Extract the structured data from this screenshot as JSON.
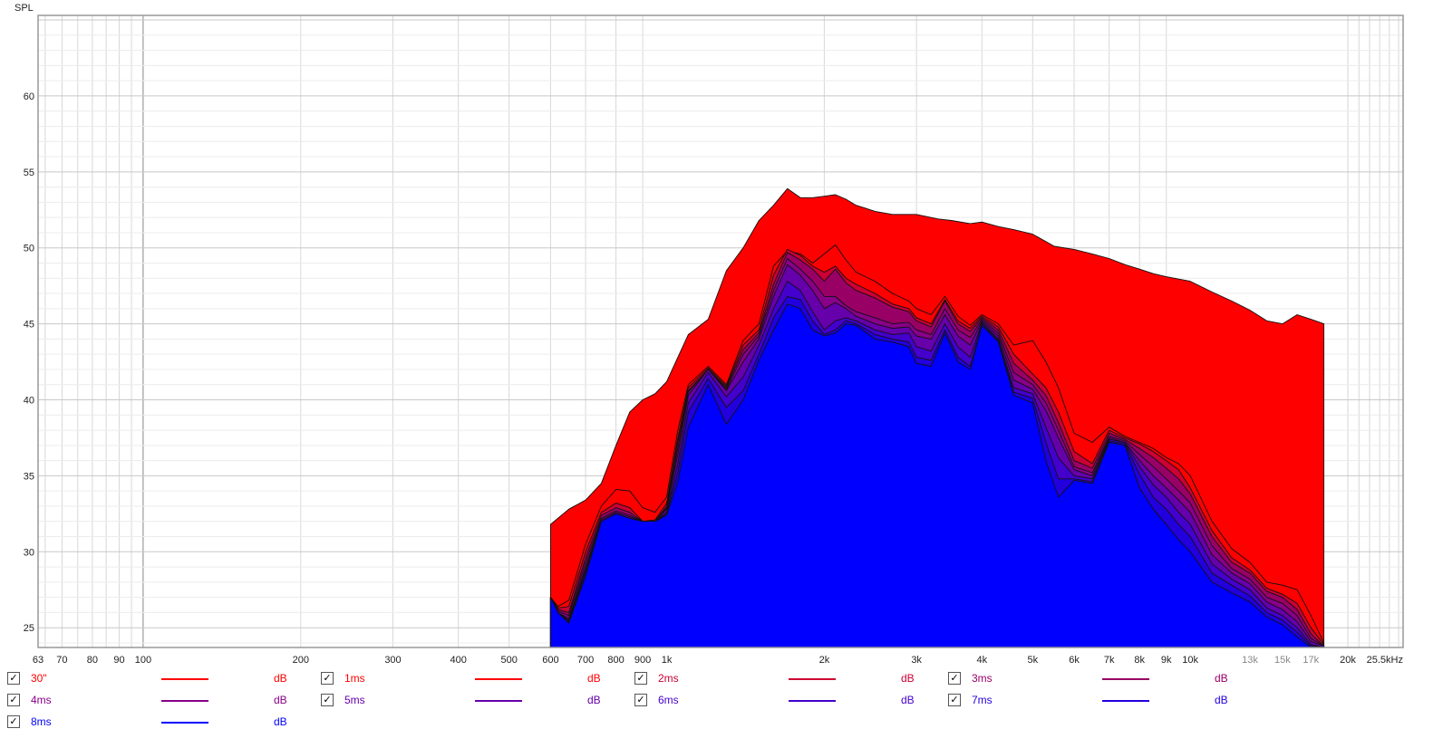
{
  "chart_data": {
    "type": "area",
    "ylabel": "SPL",
    "x_scale": "log",
    "xlim": [
      63,
      25500
    ],
    "ylim": [
      23.7,
      65.3
    ],
    "grid": true,
    "x_ticks": [
      {
        "v": 63,
        "label": "63"
      },
      {
        "v": 70,
        "label": "70"
      },
      {
        "v": 80,
        "label": "80"
      },
      {
        "v": 90,
        "label": "90"
      },
      {
        "v": 100,
        "label": "100"
      },
      {
        "v": 200,
        "label": "200"
      },
      {
        "v": 300,
        "label": "300"
      },
      {
        "v": 400,
        "label": "400"
      },
      {
        "v": 500,
        "label": "500"
      },
      {
        "v": 600,
        "label": "600"
      },
      {
        "v": 700,
        "label": "700"
      },
      {
        "v": 800,
        "label": "800"
      },
      {
        "v": 900,
        "label": "900"
      },
      {
        "v": 1000,
        "label": "1k"
      },
      {
        "v": 2000,
        "label": "2k"
      },
      {
        "v": 3000,
        "label": "3k"
      },
      {
        "v": 4000,
        "label": "4k"
      },
      {
        "v": 5000,
        "label": "5k"
      },
      {
        "v": 6000,
        "label": "6k"
      },
      {
        "v": 7000,
        "label": "7k"
      },
      {
        "v": 8000,
        "label": "8k"
      },
      {
        "v": 9000,
        "label": "9k"
      },
      {
        "v": 10000,
        "label": "10k"
      },
      {
        "v": 13000,
        "label": "13k",
        "minor": true
      },
      {
        "v": 15000,
        "label": "15k",
        "minor": true
      },
      {
        "v": 17000,
        "label": "17k",
        "minor": true
      },
      {
        "v": 20000,
        "label": "20k"
      },
      {
        "v": 25500,
        "label": "25.5kHz"
      }
    ],
    "y_ticks": [
      25,
      30,
      35,
      40,
      45,
      50,
      55,
      60
    ],
    "series": [
      {
        "name": "30\"",
        "color": "#ff0000",
        "x": [
          600,
          650,
          700,
          750,
          800,
          850,
          900,
          950,
          1000,
          1100,
          1200,
          1300,
          1400,
          1500,
          1600,
          1700,
          1800,
          1900,
          2000,
          2100,
          2200,
          2300,
          2400,
          2500,
          2700,
          3000,
          3300,
          3500,
          3800,
          4000,
          4300,
          4600,
          5000,
          5500,
          6000,
          6500,
          7000,
          7500,
          8000,
          8500,
          9000,
          10000,
          11000,
          12000,
          13000,
          14000,
          15000,
          16000,
          17000,
          18000
        ],
        "y": [
          31.8,
          32.8,
          33.4,
          34.5,
          37.0,
          39.2,
          40.0,
          40.4,
          41.2,
          44.3,
          45.3,
          48.5,
          50.0,
          51.8,
          52.8,
          53.9,
          53.3,
          53.3,
          53.4,
          53.5,
          53.2,
          52.8,
          52.6,
          52.4,
          52.2,
          52.2,
          51.9,
          51.8,
          51.6,
          51.7,
          51.4,
          51.2,
          50.9,
          50.1,
          49.9,
          49.6,
          49.3,
          48.9,
          48.6,
          48.3,
          48.1,
          47.8,
          47.1,
          46.5,
          45.9,
          45.2,
          45.0,
          45.6,
          45.3,
          45.0
        ]
      },
      {
        "name": "1ms",
        "color": "#ff0000",
        "x": [
          600,
          620,
          650,
          700,
          750,
          800,
          850,
          900,
          950,
          1000,
          1050,
          1100,
          1200,
          1300,
          1400,
          1500,
          1600,
          1700,
          1800,
          1900,
          2000,
          2100,
          2200,
          2300,
          2500,
          2700,
          2900,
          3000,
          3200,
          3400,
          3600,
          3800,
          4000,
          4300,
          4600,
          5000,
          5300,
          5600,
          6000,
          6500,
          7000,
          7500,
          8000,
          8500,
          9000,
          9500,
          10000,
          11000,
          12000,
          13000,
          14000,
          15000,
          16000,
          17000,
          18000
        ],
        "y": [
          27.0,
          26.4,
          26.8,
          30.5,
          33.0,
          34.1,
          34.0,
          32.9,
          32.6,
          33.6,
          38.0,
          41.0,
          42.2,
          41.0,
          43.9,
          45.0,
          48.8,
          49.8,
          49.6,
          49.0,
          49.6,
          50.2,
          49.2,
          48.4,
          47.8,
          47.0,
          46.5,
          46.0,
          45.6,
          46.8,
          45.5,
          44.9,
          45.6,
          45.0,
          43.6,
          43.9,
          42.5,
          40.8,
          37.8,
          37.2,
          38.2,
          37.6,
          37.2,
          36.8,
          36.2,
          35.8,
          35.0,
          32.0,
          30.2,
          29.3,
          28.0,
          27.8,
          27.5,
          25.8,
          24.0
        ]
      },
      {
        "name": "2ms",
        "color": "#cc0033",
        "x": [
          600,
          620,
          650,
          700,
          750,
          800,
          850,
          900,
          950,
          1000,
          1050,
          1100,
          1200,
          1300,
          1400,
          1500,
          1600,
          1700,
          1800,
          1900,
          2000,
          2100,
          2200,
          2300,
          2500,
          2700,
          2900,
          3000,
          3200,
          3400,
          3600,
          3800,
          4000,
          4300,
          4600,
          5000,
          5300,
          5600,
          6000,
          6500,
          7000,
          7500,
          8000,
          8500,
          9000,
          9500,
          10000,
          11000,
          12000,
          13000,
          14000,
          15000,
          16000,
          17000,
          18000
        ],
        "y": [
          27.0,
          26.3,
          26.4,
          30.0,
          32.6,
          33.2,
          32.9,
          32.0,
          32.1,
          33.2,
          37.5,
          40.8,
          42.1,
          40.9,
          43.6,
          44.6,
          48.2,
          49.9,
          49.5,
          48.8,
          48.4,
          48.8,
          48.0,
          47.6,
          47.0,
          46.3,
          46.0,
          45.4,
          45.0,
          46.6,
          45.2,
          44.7,
          45.5,
          44.8,
          43.0,
          41.7,
          40.8,
          39.2,
          36.6,
          35.8,
          38.0,
          37.5,
          37.1,
          36.6,
          36.0,
          35.4,
          34.2,
          31.4,
          29.6,
          28.8,
          27.6,
          27.2,
          26.6,
          25.0,
          23.9
        ]
      },
      {
        "name": "3ms",
        "color": "#990066",
        "x": [
          600,
          620,
          650,
          700,
          750,
          800,
          850,
          900,
          950,
          1000,
          1050,
          1100,
          1200,
          1300,
          1400,
          1500,
          1600,
          1700,
          1800,
          1900,
          2000,
          2100,
          2200,
          2300,
          2500,
          2700,
          2900,
          3000,
          3200,
          3400,
          3600,
          3800,
          4000,
          4300,
          4600,
          5000,
          5300,
          5600,
          6000,
          6500,
          7000,
          7500,
          8000,
          8500,
          9000,
          9500,
          10000,
          11000,
          12000,
          13000,
          14000,
          15000,
          16000,
          17000,
          18000
        ],
        "y": [
          27.0,
          26.2,
          26.0,
          29.6,
          32.4,
          32.9,
          32.6,
          32.0,
          32.0,
          33.0,
          37.2,
          40.6,
          42.0,
          40.8,
          43.3,
          44.4,
          47.6,
          49.7,
          49.2,
          48.6,
          47.8,
          48.6,
          47.7,
          47.2,
          46.7,
          46.1,
          45.8,
          45.2,
          44.8,
          46.5,
          45.0,
          44.5,
          45.4,
          44.6,
          42.4,
          41.3,
          40.3,
          38.5,
          36.0,
          35.5,
          37.8,
          37.4,
          36.8,
          36.2,
          35.5,
          34.8,
          33.8,
          31.0,
          29.3,
          28.6,
          27.4,
          27.0,
          26.2,
          24.6,
          23.8
        ]
      },
      {
        "name": "4ms",
        "color": "#880088",
        "x": [
          600,
          620,
          650,
          700,
          750,
          800,
          850,
          900,
          950,
          1000,
          1050,
          1100,
          1200,
          1300,
          1400,
          1500,
          1600,
          1700,
          1800,
          1900,
          2000,
          2100,
          2200,
          2300,
          2500,
          2700,
          2900,
          3000,
          3200,
          3400,
          3600,
          3800,
          4000,
          4300,
          4600,
          5000,
          5300,
          5600,
          6000,
          6500,
          7000,
          7500,
          8000,
          8500,
          9000,
          9500,
          10000,
          11000,
          12000,
          13000,
          14000,
          15000,
          16000,
          17000,
          18000
        ],
        "y": [
          27.0,
          26.1,
          25.8,
          29.3,
          32.2,
          32.7,
          32.4,
          32.0,
          32.0,
          32.9,
          36.8,
          40.5,
          42.0,
          40.7,
          43.0,
          44.2,
          47.2,
          49.3,
          48.6,
          47.8,
          46.8,
          46.8,
          46.2,
          45.8,
          45.4,
          45.0,
          45.1,
          44.6,
          44.3,
          46.0,
          44.6,
          44.1,
          45.3,
          44.4,
          41.8,
          41.0,
          39.8,
          38.0,
          35.6,
          35.2,
          37.6,
          37.3,
          36.4,
          35.6,
          34.8,
          34.0,
          33.2,
          30.4,
          28.9,
          28.2,
          27.0,
          26.6,
          25.8,
          24.3,
          23.8
        ]
      },
      {
        "name": "5ms",
        "color": "#6600aa",
        "x": [
          600,
          620,
          650,
          700,
          750,
          800,
          850,
          900,
          950,
          1000,
          1050,
          1100,
          1200,
          1300,
          1400,
          1500,
          1600,
          1700,
          1800,
          1900,
          2000,
          2100,
          2200,
          2300,
          2500,
          2700,
          2900,
          3000,
          3200,
          3400,
          3600,
          3800,
          4000,
          4300,
          4600,
          5000,
          5300,
          5600,
          6000,
          6500,
          7000,
          7500,
          8000,
          8500,
          9000,
          9500,
          10000,
          11000,
          12000,
          13000,
          14000,
          15000,
          16000,
          17000,
          18000
        ],
        "y": [
          27.0,
          26.0,
          25.6,
          29.0,
          32.1,
          32.6,
          32.3,
          32.0,
          32.0,
          32.8,
          36.4,
          40.3,
          42.0,
          40.6,
          42.5,
          44.0,
          46.8,
          48.9,
          48.2,
          47.2,
          46.0,
          46.4,
          46.0,
          45.5,
          45.0,
          44.7,
          44.8,
          44.2,
          44.0,
          45.6,
          44.2,
          43.6,
          45.2,
          44.2,
          41.3,
          40.7,
          39.3,
          37.5,
          35.4,
          35.0,
          37.5,
          37.2,
          36.0,
          35.0,
          34.2,
          33.4,
          32.6,
          29.8,
          28.6,
          27.9,
          26.7,
          26.2,
          25.4,
          24.1,
          23.8
        ]
      },
      {
        "name": "6ms",
        "color": "#4400cc",
        "x": [
          600,
          620,
          650,
          700,
          750,
          800,
          850,
          900,
          950,
          1000,
          1050,
          1100,
          1200,
          1300,
          1400,
          1500,
          1600,
          1700,
          1800,
          1900,
          2000,
          2100,
          2200,
          2300,
          2500,
          2700,
          2900,
          3000,
          3200,
          3400,
          3600,
          3800,
          4000,
          4300,
          4600,
          5000,
          5300,
          5600,
          6000,
          6500,
          7000,
          7500,
          8000,
          8500,
          9000,
          9500,
          10000,
          11000,
          12000,
          13000,
          14000,
          15000,
          16000,
          17000,
          18000
        ],
        "y": [
          27.0,
          26.0,
          25.5,
          28.8,
          32.0,
          32.5,
          32.2,
          32.0,
          32.0,
          32.6,
          35.8,
          39.8,
          41.8,
          40.2,
          41.5,
          43.6,
          46.0,
          47.8,
          47.2,
          45.8,
          44.6,
          45.2,
          45.4,
          45.2,
          44.6,
          44.3,
          44.4,
          43.5,
          43.2,
          45.0,
          43.5,
          42.8,
          45.1,
          44.0,
          40.8,
          40.4,
          38.2,
          36.2,
          35.0,
          34.8,
          37.4,
          37.2,
          35.6,
          34.4,
          33.6,
          32.6,
          31.8,
          29.2,
          28.2,
          27.5,
          26.3,
          25.8,
          25.0,
          23.9,
          23.7
        ]
      },
      {
        "name": "7ms",
        "color": "#2200dd",
        "x": [
          600,
          620,
          650,
          700,
          750,
          800,
          850,
          900,
          950,
          1000,
          1050,
          1100,
          1200,
          1300,
          1400,
          1500,
          1600,
          1700,
          1800,
          1900,
          2000,
          2100,
          2200,
          2300,
          2500,
          2700,
          2900,
          3000,
          3200,
          3400,
          3600,
          3800,
          4000,
          4300,
          4600,
          5000,
          5300,
          5600,
          6000,
          6500,
          7000,
          7500,
          8000,
          8500,
          9000,
          9500,
          10000,
          11000,
          12000,
          13000,
          14000,
          15000,
          16000,
          17000,
          18000
        ],
        "y": [
          27.0,
          26.0,
          25.4,
          28.6,
          32.0,
          32.5,
          32.2,
          32.0,
          32.0,
          32.5,
          35.2,
          39.2,
          41.4,
          39.5,
          40.6,
          43.0,
          45.4,
          46.8,
          46.6,
          45.2,
          44.3,
          44.6,
          45.2,
          45.0,
          44.3,
          44.0,
          43.8,
          42.8,
          42.6,
          44.6,
          42.8,
          42.2,
          45.0,
          43.9,
          40.5,
          40.1,
          37.2,
          34.8,
          34.8,
          34.6,
          37.3,
          37.1,
          35.1,
          33.6,
          32.8,
          31.8,
          31.0,
          28.6,
          27.8,
          27.1,
          26.0,
          25.5,
          24.7,
          23.8,
          23.7
        ]
      },
      {
        "name": "8ms",
        "color": "#0000ff",
        "x": [
          600,
          620,
          650,
          700,
          750,
          800,
          850,
          900,
          950,
          1000,
          1050,
          1100,
          1200,
          1300,
          1400,
          1500,
          1600,
          1700,
          1800,
          1900,
          2000,
          2100,
          2200,
          2300,
          2500,
          2700,
          2900,
          3000,
          3200,
          3400,
          3600,
          3800,
          4000,
          4300,
          4600,
          5000,
          5300,
          5600,
          6000,
          6500,
          7000,
          7500,
          8000,
          8500,
          9000,
          9500,
          10000,
          11000,
          12000,
          13000,
          14000,
          15000,
          16000,
          17000,
          18000
        ],
        "y": [
          27.0,
          26.0,
          25.3,
          28.4,
          32.0,
          32.5,
          32.2,
          32.0,
          32.0,
          32.4,
          34.6,
          38.2,
          41.0,
          38.4,
          40.0,
          42.6,
          44.6,
          46.3,
          46.0,
          44.6,
          44.2,
          44.4,
          45.0,
          44.9,
          44.0,
          43.8,
          43.5,
          42.4,
          42.2,
          44.4,
          42.5,
          42.0,
          44.9,
          43.8,
          40.3,
          39.8,
          36.0,
          33.6,
          34.7,
          34.5,
          37.2,
          37.0,
          34.2,
          32.8,
          31.8,
          30.8,
          30.0,
          28.0,
          27.3,
          26.7,
          25.7,
          25.2,
          24.4,
          23.7,
          23.7
        ]
      }
    ],
    "legend_placement": "bottom"
  },
  "legend": [
    {
      "name": "30\"",
      "color": "#ff0000",
      "unit": "dB",
      "checked": "✓"
    },
    {
      "name": "1ms",
      "color": "#ff0000",
      "unit": "dB",
      "checked": "✓"
    },
    {
      "name": "2ms",
      "color": "#cc0033",
      "unit": "dB",
      "checked": "✓"
    },
    {
      "name": "3ms",
      "color": "#990066",
      "unit": "dB",
      "checked": "✓"
    },
    {
      "name": "4ms",
      "color": "#880088",
      "unit": "dB",
      "checked": "✓"
    },
    {
      "name": "5ms",
      "color": "#6600aa",
      "unit": "dB",
      "checked": "✓"
    },
    {
      "name": "6ms",
      "color": "#4400cc",
      "unit": "dB",
      "checked": "✓"
    },
    {
      "name": "7ms",
      "color": "#2200dd",
      "unit": "dB",
      "checked": "✓"
    },
    {
      "name": "8ms",
      "color": "#0000ff",
      "unit": "dB",
      "checked": "✓"
    }
  ]
}
